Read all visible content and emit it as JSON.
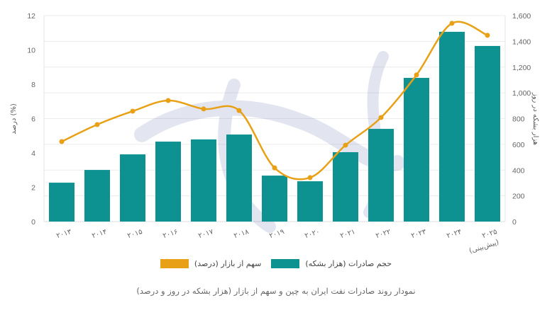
{
  "chart_data": {
    "type": "bar+line",
    "title": "نمودار روند صادرات نفت ایران به چین و سهم از بازار (هزار بشکه در روز و درصد)",
    "categories": [
      "۲۰۱۳",
      "۲۰۱۴",
      "۲۰۱۵",
      "۲۰۱۶",
      "۲۰۱۷",
      "۲۰۱۸",
      "۲۰۱۹",
      "۲۰۲۰",
      "۲۰۲۱",
      "۲۰۲۲",
      "۲۰۲۳",
      "۲۰۲۴",
      "۲۰۲۵ (پیش‌بینی)"
    ],
    "series": [
      {
        "name": "حجم صادرات (هزار بشکه)",
        "type": "bar",
        "axis": "right",
        "color": "#0e9191",
        "values": [
          302,
          401,
          522,
          621,
          638,
          676,
          357,
          313,
          539,
          720,
          1116,
          1474,
          1364
        ]
      },
      {
        "name": "سهم از بازار (درصد)",
        "type": "line",
        "axis": "left",
        "color": "#e8a116",
        "values": [
          4.66,
          5.65,
          6.43,
          7.05,
          6.56,
          6.47,
          3.13,
          2.56,
          4.45,
          6.06,
          8.54,
          11.55,
          10.85
        ]
      }
    ],
    "ylabel_left": "درصد (%)",
    "ylabel_right": "هزار بشکه در روز",
    "ylim_left": [
      0,
      12
    ],
    "ylim_right": [
      0,
      1600
    ],
    "yticks_left": [
      "0",
      "2",
      "4",
      "6",
      "8",
      "10",
      "12"
    ],
    "yticks_right": [
      "0",
      "200",
      "400",
      "600",
      "800",
      "1,000",
      "1,200",
      "1,400",
      "1,600"
    ],
    "grid": true,
    "legend_position": "bottom"
  },
  "legend": {
    "bar_label": "حجم صادرات (هزار بشکه)",
    "line_label": "سهم از بازار (درصد)"
  },
  "caption": "نمودار روند صادرات نفت ایران به چین و سهم از بازار (هزار بشکه در روز و درصد)"
}
